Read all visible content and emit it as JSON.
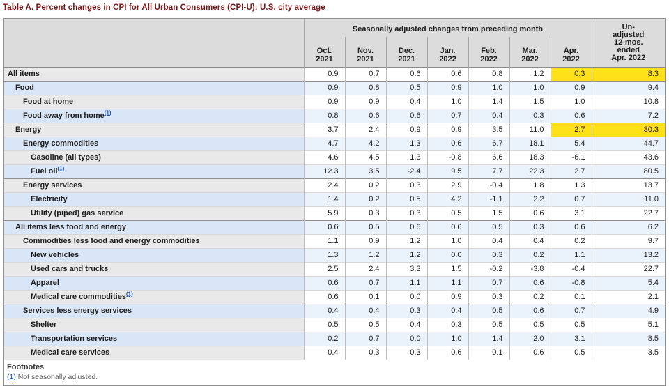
{
  "title": "Table A. Percent changes in CPI for All Urban Consumers (CPI-U): U.S. city average",
  "colors": {
    "title_maroon": "#7a1616",
    "header_gray": "#dcdcdc",
    "stripe_blue": "#eaf2fc",
    "label_stripe_blue": "#d9e6f7",
    "highlight_yellow": "#ffe11a",
    "footnote_link_blue": "#1a4fae"
  },
  "table": {
    "group_header": "Seasonally adjusted changes from preceding month",
    "unadjusted_header": "Un-\nadjusted\n12-mos.\nended\nApr. 2022",
    "months": [
      "Oct.\n2021",
      "Nov.\n2021",
      "Dec.\n2021",
      "Jan.\n2022",
      "Feb.\n2022",
      "Mar.\n2022",
      "Apr.\n2022"
    ],
    "rows": [
      {
        "label": "All items",
        "indent": 0,
        "rule": false,
        "fn": "",
        "highlight": true,
        "values": [
          "0.9",
          "0.7",
          "0.6",
          "0.6",
          "0.8",
          "1.2",
          "0.3"
        ],
        "yoy": "8.3"
      },
      {
        "label": "Food",
        "indent": 1,
        "rule": true,
        "fn": "",
        "highlight": false,
        "values": [
          "0.9",
          "0.8",
          "0.5",
          "0.9",
          "1.0",
          "1.0",
          "0.9"
        ],
        "yoy": "9.4"
      },
      {
        "label": "Food at home",
        "indent": 2,
        "rule": false,
        "fn": "",
        "highlight": false,
        "values": [
          "0.9",
          "0.9",
          "0.4",
          "1.0",
          "1.4",
          "1.5",
          "1.0"
        ],
        "yoy": "10.8"
      },
      {
        "label": "Food away from home",
        "indent": 2,
        "rule": false,
        "fn": "(1)",
        "highlight": false,
        "values": [
          "0.8",
          "0.6",
          "0.6",
          "0.7",
          "0.4",
          "0.3",
          "0.6"
        ],
        "yoy": "7.2"
      },
      {
        "label": "Energy",
        "indent": 1,
        "rule": true,
        "fn": "",
        "highlight": true,
        "values": [
          "3.7",
          "2.4",
          "0.9",
          "0.9",
          "3.5",
          "11.0",
          "2.7"
        ],
        "yoy": "30.3"
      },
      {
        "label": "Energy commodities",
        "indent": 2,
        "rule": false,
        "fn": "",
        "highlight": false,
        "values": [
          "4.7",
          "4.2",
          "1.3",
          "0.6",
          "6.7",
          "18.1",
          "5.4"
        ],
        "yoy": "44.7"
      },
      {
        "label": "Gasoline (all types)",
        "indent": 3,
        "rule": false,
        "fn": "",
        "highlight": false,
        "values": [
          "4.6",
          "4.5",
          "1.3",
          "-0.8",
          "6.6",
          "18.3",
          "-6.1"
        ],
        "yoy": "43.6"
      },
      {
        "label": "Fuel oil",
        "indent": 3,
        "rule": false,
        "fn": "(1)",
        "highlight": false,
        "values": [
          "12.3",
          "3.5",
          "-2.4",
          "9.5",
          "7.7",
          "22.3",
          "2.7"
        ],
        "yoy": "80.5"
      },
      {
        "label": "Energy services",
        "indent": 2,
        "rule": true,
        "fn": "",
        "highlight": false,
        "values": [
          "2.4",
          "0.2",
          "0.3",
          "2.9",
          "-0.4",
          "1.8",
          "1.3"
        ],
        "yoy": "13.7"
      },
      {
        "label": "Electricity",
        "indent": 3,
        "rule": false,
        "fn": "",
        "highlight": false,
        "values": [
          "1.4",
          "0.2",
          "0.5",
          "4.2",
          "-1.1",
          "2.2",
          "0.7"
        ],
        "yoy": "11.0"
      },
      {
        "label": "Utility (piped) gas service",
        "indent": 3,
        "rule": false,
        "fn": "",
        "highlight": false,
        "values": [
          "5.9",
          "0.3",
          "0.3",
          "0.5",
          "1.5",
          "0.6",
          "3.1"
        ],
        "yoy": "22.7"
      },
      {
        "label": "All items less food and energy",
        "indent": 1,
        "rule": true,
        "fn": "",
        "highlight": false,
        "values": [
          "0.6",
          "0.5",
          "0.6",
          "0.6",
          "0.5",
          "0.3",
          "0.6"
        ],
        "yoy": "6.2"
      },
      {
        "label": "Commodities less food and energy commodities",
        "indent": 2,
        "rule": false,
        "fn": "",
        "highlight": false,
        "values": [
          "1.1",
          "0.9",
          "1.2",
          "1.0",
          "0.4",
          "0.4",
          "0.2"
        ],
        "yoy": "9.7"
      },
      {
        "label": "New vehicles",
        "indent": 3,
        "rule": false,
        "fn": "",
        "highlight": false,
        "values": [
          "1.3",
          "1.2",
          "1.2",
          "0.0",
          "0.3",
          "0.2",
          "1.1"
        ],
        "yoy": "13.2"
      },
      {
        "label": "Used cars and trucks",
        "indent": 3,
        "rule": false,
        "fn": "",
        "highlight": false,
        "values": [
          "2.5",
          "2.4",
          "3.3",
          "1.5",
          "-0.2",
          "-3.8",
          "-0.4"
        ],
        "yoy": "22.7"
      },
      {
        "label": "Apparel",
        "indent": 3,
        "rule": false,
        "fn": "",
        "highlight": false,
        "values": [
          "0.6",
          "0.7",
          "1.1",
          "1.1",
          "0.7",
          "0.6",
          "-0.8"
        ],
        "yoy": "5.4"
      },
      {
        "label": "Medical care commodities",
        "indent": 3,
        "rule": false,
        "fn": "(1)",
        "highlight": false,
        "values": [
          "0.6",
          "0.1",
          "0.0",
          "0.9",
          "0.3",
          "0.2",
          "0.1"
        ],
        "yoy": "2.1"
      },
      {
        "label": "Services less energy services",
        "indent": 2,
        "rule": true,
        "fn": "",
        "highlight": false,
        "values": [
          "0.4",
          "0.4",
          "0.3",
          "0.4",
          "0.5",
          "0.6",
          "0.7"
        ],
        "yoy": "4.9"
      },
      {
        "label": "Shelter",
        "indent": 3,
        "rule": false,
        "fn": "",
        "highlight": false,
        "values": [
          "0.5",
          "0.5",
          "0.4",
          "0.3",
          "0.5",
          "0.5",
          "0.5"
        ],
        "yoy": "5.1"
      },
      {
        "label": "Transportation services",
        "indent": 3,
        "rule": false,
        "fn": "",
        "highlight": false,
        "values": [
          "0.2",
          "0.7",
          "0.0",
          "1.0",
          "1.4",
          "2.0",
          "3.1"
        ],
        "yoy": "8.5"
      },
      {
        "label": "Medical care services",
        "indent": 3,
        "rule": false,
        "fn": "",
        "highlight": false,
        "values": [
          "0.4",
          "0.3",
          "0.3",
          "0.6",
          "0.1",
          "0.6",
          "0.5"
        ],
        "yoy": "3.5"
      }
    ]
  },
  "footnotes": {
    "heading": "Footnotes",
    "items": [
      {
        "ref": "(1)",
        "text": " Not seasonally adjusted."
      }
    ]
  }
}
